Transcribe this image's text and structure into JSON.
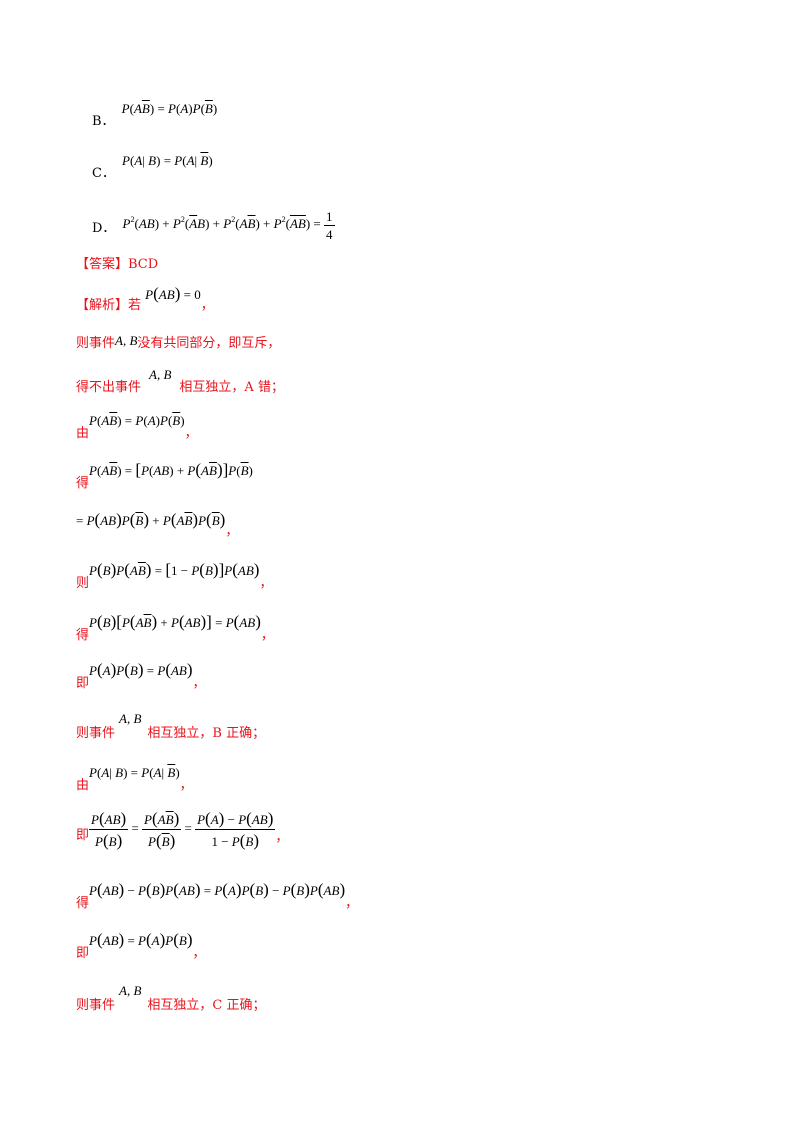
{
  "options": {
    "B_label": "B．",
    "B_formula": "P(AB̄) = P(A)P(B̄)",
    "C_label": "C．",
    "C_formula": "P(A|B) = P(A|B̄)",
    "D_label": "D．",
    "D_formula": "P²(AB) + P²(ĀB) + P²(AB̄) + P²(ĀB̄) = 1/4"
  },
  "answer": {
    "label": "【答案】",
    "value": "BCD"
  },
  "analysis": {
    "label": "【解析】",
    "lines": [
      {
        "text_before": "若",
        "formula": "P(AB) = 0",
        "text_after": "，"
      },
      {
        "text_before": "则事件",
        "formula": "A, B",
        "text_after": "没有共同部分，即互斥，"
      },
      {
        "text_before": "得不出事件",
        "formula": "A, B",
        "text_after": "相互独立，A 错；"
      },
      {
        "text_before": "由",
        "formula": "P(AB̄) = P(A)P(B̄)",
        "text_after": "，"
      },
      {
        "text_before": "得",
        "formula": "P(AB̄) = [P(AB) + P(AB̄)]P(B̄)",
        "text_after": ""
      },
      {
        "text_before": "",
        "formula": "= P(AB)P(B̄) + P(AB̄)P(B̄)",
        "text_after": "，"
      },
      {
        "text_before": "则",
        "formula": "P(B)P(AB̄) = [1 − P(B)]P(AB)",
        "text_after": "，"
      },
      {
        "text_before": "得",
        "formula": "P(B)[P(AB̄) + P(AB)] = P(AB)",
        "text_after": "，"
      },
      {
        "text_before": "即",
        "formula": "P(A)P(B) = P(AB)",
        "text_after": "，"
      },
      {
        "text_before": "则事件",
        "formula": "A, B",
        "text_after": "相互独立，B 正确；"
      },
      {
        "text_before": "由",
        "formula": "P(A|B) = P(A|B̄)",
        "text_after": "，"
      },
      {
        "text_before": "即",
        "formula": "P(AB)/P(B) = P(AB̄)/P(B̄) = (P(A) − P(AB))/(1 − P(B))",
        "text_after": "，"
      },
      {
        "text_before": "得",
        "formula": "P(AB) − P(B)P(AB) = P(A)P(B) − P(B)P(AB)",
        "text_after": "，"
      },
      {
        "text_before": "即",
        "formula": "P(AB) = P(A)P(B)",
        "text_after": "，"
      },
      {
        "text_before": "则事件",
        "formula": "A, B",
        "text_after": "相互独立，C 正确；"
      }
    ]
  }
}
